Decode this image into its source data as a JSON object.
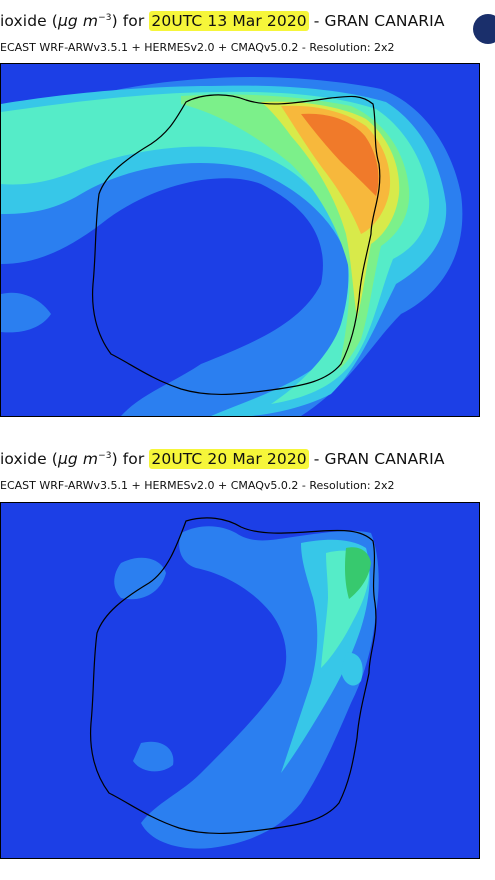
{
  "panels": [
    {
      "title_prefix": "ioxide (",
      "title_unit": "μg m",
      "title_unit_exp": "−3",
      "title_for": ") for ",
      "title_time": "20UTC 13 Mar 2020",
      "title_suffix": " - GRAN CANARIA",
      "subtitle": "ECAST  WRF-ARWv3.5.1 + HERMESv2.0 + CMAQv5.0.2 - Resolution: 2x2"
    },
    {
      "title_prefix": "ioxide (",
      "title_unit": "μg m",
      "title_unit_exp": "−3",
      "title_for": ") for ",
      "title_time": "20UTC 20 Mar 2020",
      "title_suffix": " - GRAN CANARIA",
      "subtitle": "ECAST  WRF-ARWv3.5.1 + HERMESv2.0 + CMAQv5.0.2 - Resolution: 2x2"
    }
  ],
  "colors": {
    "background_low": "#1c3fe6",
    "level_1": "#2b7ff0",
    "level_2": "#37c7e8",
    "level_3": "#55ecc8",
    "level_4": "#7cf08a",
    "level_5": "#d8ea4a",
    "level_6": "#f7b83c",
    "level_7": "#f07a2a",
    "coastline": "#000000",
    "highlight": "#f6f63a"
  },
  "icons": {
    "logo": "institution-logo-icon"
  }
}
